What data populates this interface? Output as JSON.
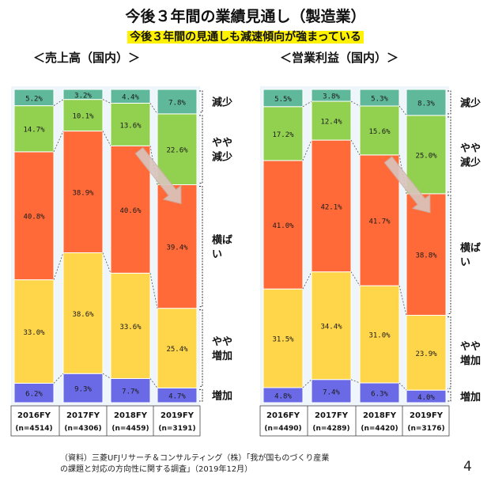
{
  "header": {
    "title": "今後３年間の業績見通し（製造業）",
    "subtitle": "今後３年間の見通しも減速傾向が強まっている"
  },
  "panels": [
    {
      "title": "＜売上高（国内）＞"
    },
    {
      "title": "＜営業利益（国内）＞"
    }
  ],
  "footer": {
    "source_line1": "（資料）三菱UFJリサーチ＆コンサルティング（株）「我が国ものづくり産業",
    "source_line2": "の課題と対応の方向性に関する調査」（2019年12月）",
    "page_number": "4"
  },
  "colors": {
    "increase": "#6a6ae6",
    "slight_increase": "#ffd54a",
    "flat": "#ff6a38",
    "slight_decrease": "#92d050",
    "decrease": "#5fb89a",
    "arrow": "#d9c4bd"
  },
  "chart_data": [
    {
      "type": "bar",
      "stacked": true,
      "normalized_to": 100,
      "title": "＜売上高（国内）＞",
      "categories": [
        "2016FY",
        "2017FY",
        "2018FY",
        "2019FY"
      ],
      "sample_sizes": [
        "(n=4514)",
        "(n=4306)",
        "(n=4459)",
        "(n=3191)"
      ],
      "series": [
        {
          "name": "増加",
          "values": [
            6.2,
            9.3,
            7.7,
            4.7
          ],
          "labels": [
            "6.2%",
            "9.3%",
            "7.7%",
            "4.7%"
          ]
        },
        {
          "name": "やや増加",
          "values": [
            33.0,
            38.6,
            33.6,
            25.4
          ],
          "labels": [
            "33.0%",
            "38.6%",
            "33.6%",
            "25.4%"
          ]
        },
        {
          "name": "横ばい",
          "values": [
            40.8,
            38.9,
            40.6,
            39.4
          ],
          "labels": [
            "40.8%",
            "38.9%",
            "40.6%",
            "39.4%"
          ]
        },
        {
          "name": "やや減少",
          "values": [
            14.7,
            10.1,
            13.6,
            22.6
          ],
          "labels": [
            "14.7%",
            "10.1%",
            "13.6%",
            "22.6%"
          ]
        },
        {
          "name": "減少",
          "values": [
            5.2,
            3.2,
            4.4,
            7.8
          ],
          "labels": [
            "5.2%",
            "3.2%",
            "4.4%",
            "7.8%"
          ]
        }
      ],
      "legend": [
        "減少",
        "やや減少",
        "横ばい",
        "やや増加",
        "増加"
      ]
    },
    {
      "type": "bar",
      "stacked": true,
      "normalized_to": 100,
      "title": "＜営業利益（国内）＞",
      "categories": [
        "2016FY",
        "2017FY",
        "2018FY",
        "2019FY"
      ],
      "sample_sizes": [
        "(n=4490)",
        "(n=4289)",
        "(n=4420)",
        "(n=3176)"
      ],
      "series": [
        {
          "name": "増加",
          "values": [
            4.8,
            7.4,
            6.3,
            4.0
          ],
          "labels": [
            "4.8%",
            "7.4%",
            "6.3%",
            "4.0%"
          ]
        },
        {
          "name": "やや増加",
          "values": [
            31.5,
            34.4,
            31.0,
            23.9
          ],
          "labels": [
            "31.5%",
            "34.4%",
            "31.0%",
            "23.9%"
          ]
        },
        {
          "name": "横ばい",
          "values": [
            41.0,
            42.1,
            41.7,
            38.8
          ],
          "labels": [
            "41.0%",
            "42.1%",
            "41.7%",
            "38.8%"
          ]
        },
        {
          "name": "やや減少",
          "values": [
            17.2,
            12.4,
            15.6,
            25.0
          ],
          "labels": [
            "17.2%",
            "12.4%",
            "15.6%",
            "25.0%"
          ]
        },
        {
          "name": "減少",
          "values": [
            5.5,
            3.8,
            5.3,
            8.3
          ],
          "labels": [
            "5.5%",
            "3.8%",
            "5.3%",
            "8.3%"
          ]
        }
      ],
      "legend": [
        "減少",
        "やや減少",
        "横ばい",
        "やや増加",
        "増加"
      ]
    }
  ]
}
